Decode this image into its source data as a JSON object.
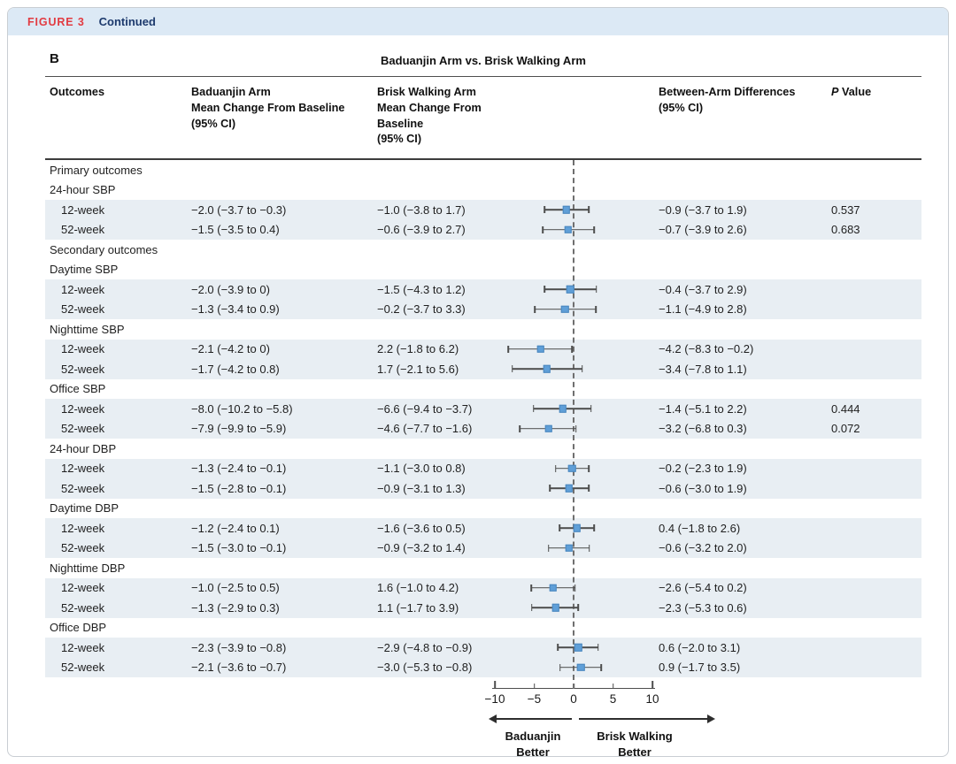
{
  "figure_header": {
    "label": "FIGURE 3",
    "continued": "Continued"
  },
  "panel": {
    "letter": "B",
    "title": "Baduanjin Arm vs. Brisk Walking Arm"
  },
  "table": {
    "headers": {
      "outcomes": "Outcomes",
      "baduanjin": [
        "Baduanjin Arm",
        "Mean Change From Baseline",
        "(95% CI)"
      ],
      "brisk": [
        "Brisk Walking Arm",
        "Mean Change From Baseline",
        "(95% CI)"
      ],
      "diff": [
        "Between-Arm Differences",
        "(95% CI)"
      ],
      "p_italic": "P",
      "p_rest": " Value"
    },
    "rows": [
      {
        "type": "section",
        "label": "Primary outcomes"
      },
      {
        "type": "section",
        "label": "24-hour SBP"
      },
      {
        "type": "data",
        "label": "12-week",
        "baduanjin": "−2.0 (−3.7 to −0.3)",
        "brisk": "−1.0 (−3.8 to 1.7)",
        "diff": "−0.9 (−3.7 to 1.9)",
        "p": "0.537"
      },
      {
        "type": "data",
        "label": "52-week",
        "baduanjin": "−1.5 (−3.5 to 0.4)",
        "brisk": "−0.6 (−3.9 to 2.7)",
        "diff": "−0.7 (−3.9 to 2.6)",
        "p": "0.683"
      },
      {
        "type": "section",
        "label": "Secondary outcomes"
      },
      {
        "type": "section",
        "label": "Daytime SBP"
      },
      {
        "type": "data",
        "label": "12-week",
        "baduanjin": "−2.0 (−3.9 to 0)",
        "brisk": "−1.5 (−4.3 to 1.2)",
        "diff": "−0.4 (−3.7 to 2.9)",
        "p": ""
      },
      {
        "type": "data",
        "label": "52-week",
        "baduanjin": "−1.3 (−3.4 to 0.9)",
        "brisk": "−0.2 (−3.7 to 3.3)",
        "diff": "−1.1 (−4.9 to 2.8)",
        "p": ""
      },
      {
        "type": "section",
        "label": "Nighttime SBP"
      },
      {
        "type": "data",
        "label": "12-week",
        "baduanjin": "−2.1 (−4.2 to 0)",
        "brisk": "2.2 (−1.8 to 6.2)",
        "diff": "−4.2 (−8.3 to −0.2)",
        "p": ""
      },
      {
        "type": "data",
        "label": "52-week",
        "baduanjin": "−1.7 (−4.2 to 0.8)",
        "brisk": "1.7 (−2.1 to 5.6)",
        "diff": "−3.4 (−7.8 to 1.1)",
        "p": ""
      },
      {
        "type": "section",
        "label": "Office SBP"
      },
      {
        "type": "data",
        "label": "12-week",
        "baduanjin": "−8.0 (−10.2 to −5.8)",
        "brisk": "−6.6 (−9.4 to −3.7)",
        "diff": "−1.4 (−5.1 to 2.2)",
        "p": "0.444"
      },
      {
        "type": "data",
        "label": "52-week",
        "baduanjin": "−7.9 (−9.9 to −5.9)",
        "brisk": "−4.6 (−7.7 to −1.6)",
        "diff": "−3.2 (−6.8 to 0.3)",
        "p": "0.072"
      },
      {
        "type": "section",
        "label": "24-hour DBP"
      },
      {
        "type": "data",
        "label": "12-week",
        "baduanjin": "−1.3 (−2.4 to −0.1)",
        "brisk": "−1.1 (−3.0 to 0.8)",
        "diff": "−0.2 (−2.3 to 1.9)",
        "p": ""
      },
      {
        "type": "data",
        "label": "52-week",
        "baduanjin": "−1.5 (−2.8 to −0.1)",
        "brisk": "−0.9 (−3.1 to 1.3)",
        "diff": "−0.6 (−3.0 to 1.9)",
        "p": ""
      },
      {
        "type": "section",
        "label": "Daytime DBP"
      },
      {
        "type": "data",
        "label": "12-week",
        "baduanjin": "−1.2 (−2.4 to 0.1)",
        "brisk": "−1.6 (−3.6 to 0.5)",
        "diff": "0.4 (−1.8 to 2.6)",
        "p": ""
      },
      {
        "type": "data",
        "label": "52-week",
        "baduanjin": "−1.5 (−3.0 to −0.1)",
        "brisk": "−0.9 (−3.2 to 1.4)",
        "diff": "−0.6 (−3.2 to 2.0)",
        "p": ""
      },
      {
        "type": "section",
        "label": "Nighttime DBP"
      },
      {
        "type": "data",
        "label": "12-week",
        "baduanjin": "−1.0 (−2.5 to 0.5)",
        "brisk": "1.6 (−1.0 to 4.2)",
        "diff": "−2.6 (−5.4 to 0.2)",
        "p": ""
      },
      {
        "type": "data",
        "label": "52-week",
        "baduanjin": "−1.3 (−2.9 to 0.3)",
        "brisk": "1.1 (−1.7 to 3.9)",
        "diff": "−2.3 (−5.3 to 0.6)",
        "p": ""
      },
      {
        "type": "section",
        "label": "Office DBP"
      },
      {
        "type": "data",
        "label": "12-week",
        "baduanjin": "−2.3 (−3.9 to −0.8)",
        "brisk": "−2.9 (−4.8 to −0.9)",
        "diff": "0.6 (−2.0 to 3.1)",
        "p": ""
      },
      {
        "type": "data",
        "label": "52-week",
        "baduanjin": "−2.1 (−3.6 to −0.7)",
        "brisk": "−3.0 (−5.3 to −0.8)",
        "diff": "0.9 (−1.7 to 3.5)",
        "p": ""
      }
    ]
  },
  "chart_data": {
    "type": "scatter",
    "subtype": "forest-plot",
    "title": "Baduanjin Arm vs. Brisk Walking Arm",
    "value_plotted": "Between-Arm Differences (95% CI)",
    "x_axis": {
      "range": [
        -10,
        10
      ],
      "ticks": [
        -10,
        -5,
        0,
        5,
        10
      ],
      "tick_labels": [
        "−10",
        "−5",
        "0",
        "5",
        "10"
      ]
    },
    "zero_reference_line": 0,
    "points": [
      {
        "outcome": "24-hour SBP",
        "timepoint": "12-week",
        "est": -0.9,
        "lo": -3.7,
        "hi": 1.9
      },
      {
        "outcome": "24-hour SBP",
        "timepoint": "52-week",
        "est": -0.7,
        "lo": -3.9,
        "hi": 2.6
      },
      {
        "outcome": "Daytime SBP",
        "timepoint": "12-week",
        "est": -0.4,
        "lo": -3.7,
        "hi": 2.9
      },
      {
        "outcome": "Daytime SBP",
        "timepoint": "52-week",
        "est": -1.1,
        "lo": -4.9,
        "hi": 2.8
      },
      {
        "outcome": "Nighttime SBP",
        "timepoint": "12-week",
        "est": -4.2,
        "lo": -8.3,
        "hi": -0.2
      },
      {
        "outcome": "Nighttime SBP",
        "timepoint": "52-week",
        "est": -3.4,
        "lo": -7.8,
        "hi": 1.1
      },
      {
        "outcome": "Office SBP",
        "timepoint": "12-week",
        "est": -1.4,
        "lo": -5.1,
        "hi": 2.2
      },
      {
        "outcome": "Office SBP",
        "timepoint": "52-week",
        "est": -3.2,
        "lo": -6.8,
        "hi": 0.3
      },
      {
        "outcome": "24-hour DBP",
        "timepoint": "12-week",
        "est": -0.2,
        "lo": -2.3,
        "hi": 1.9
      },
      {
        "outcome": "24-hour DBP",
        "timepoint": "52-week",
        "est": -0.6,
        "lo": -3.0,
        "hi": 1.9
      },
      {
        "outcome": "Daytime DBP",
        "timepoint": "12-week",
        "est": 0.4,
        "lo": -1.8,
        "hi": 2.6
      },
      {
        "outcome": "Daytime DBP",
        "timepoint": "52-week",
        "est": -0.6,
        "lo": -3.2,
        "hi": 2.0
      },
      {
        "outcome": "Nighttime DBP",
        "timepoint": "12-week",
        "est": -2.6,
        "lo": -5.4,
        "hi": 0.2
      },
      {
        "outcome": "Nighttime DBP",
        "timepoint": "52-week",
        "est": -2.3,
        "lo": -5.3,
        "hi": 0.6
      },
      {
        "outcome": "Office DBP",
        "timepoint": "12-week",
        "est": 0.6,
        "lo": -2.0,
        "hi": 3.1
      },
      {
        "outcome": "Office DBP",
        "timepoint": "52-week",
        "est": 0.9,
        "lo": -1.7,
        "hi": 3.5
      }
    ],
    "arrow_labels": {
      "left": [
        "Baduanjin",
        "Better"
      ],
      "right": [
        "Brisk Walking",
        "Better"
      ]
    }
  },
  "colors": {
    "header_band": "#dce9f5",
    "figure_label_red": "#e23b41",
    "continued_navy": "#1d3a6d",
    "row_shade": "#e8eef3",
    "marker_blue": "#5f9fd8",
    "ci_line": "#4d4d4d",
    "dashed_line": "#6f6f6f"
  }
}
